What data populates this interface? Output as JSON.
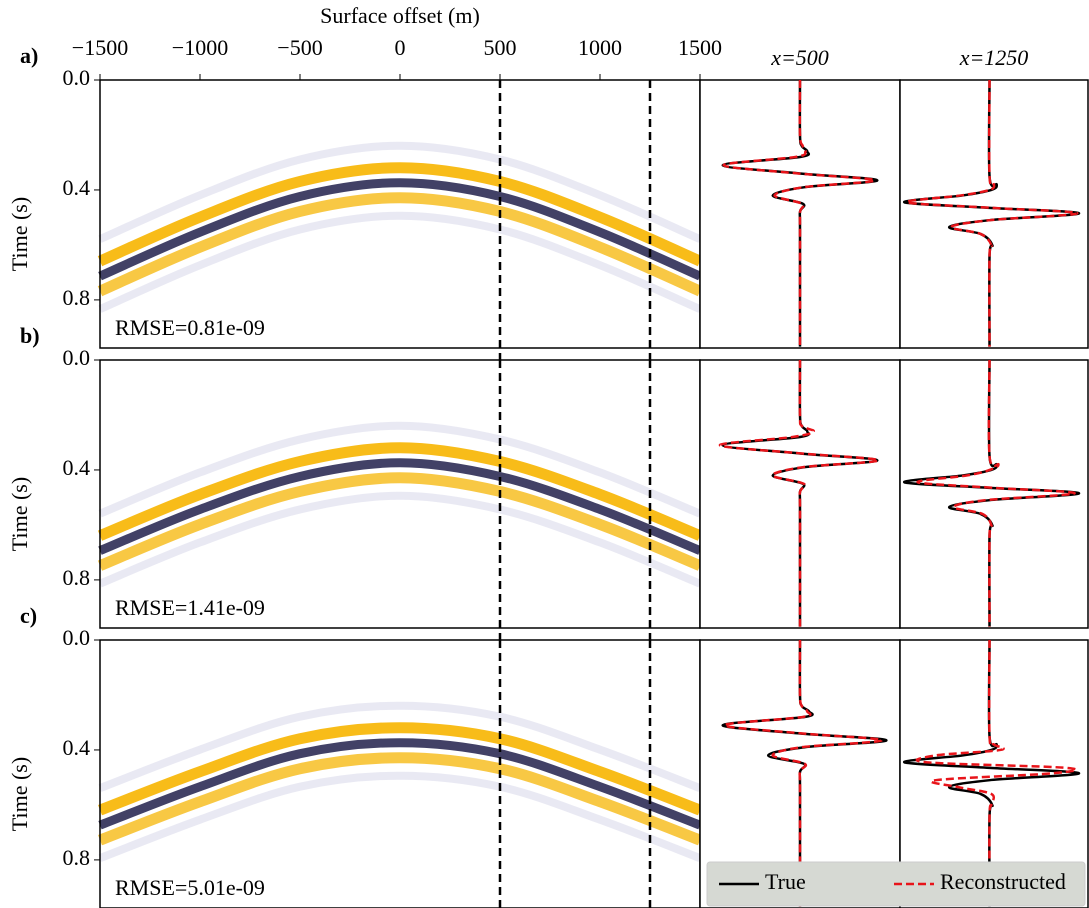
{
  "chart_data": [
    {
      "type": "heatmap",
      "panel_label": "a)",
      "xlabel": "Surface offset (m)",
      "ylabel": "Time (s)",
      "xlim": [
        -1500,
        1500
      ],
      "xticks": [
        {
          "value": -1500,
          "label": "−1500"
        },
        {
          "value": -1000,
          "label": "−1000"
        },
        {
          "value": -500,
          "label": "−500"
        },
        0,
        500,
        1000,
        1500
      ],
      "ylim": [
        0,
        0.975
      ],
      "yticks": [
        {
          "value": 0,
          "label": "0.0"
        },
        0.4,
        0.8
      ],
      "annotation": "RMSE=0.81e-09",
      "vlines": [
        500,
        1250
      ],
      "wavefront": {
        "x": [
          -1500,
          -1000,
          -500,
          0,
          500,
          1000,
          1500
        ],
        "values": [
          0.71,
          0.55,
          0.42,
          0.37,
          0.42,
          0.55,
          0.71
        ]
      }
    },
    {
      "type": "trace",
      "title": "x=500",
      "xlim": [
        0,
        0.975
      ],
      "ylim": [
        -1.1,
        1.1
      ],
      "x": [
        0,
        0.2,
        0.24,
        0.26,
        0.28,
        0.31,
        0.34,
        0.365,
        0.39,
        0.42,
        0.45,
        0.48,
        0.55,
        0.97
      ],
      "series": [
        {
          "name": "True",
          "color": "#000000",
          "values": [
            0,
            0,
            0.02,
            0.08,
            0,
            -0.85,
            0,
            0.85,
            0.05,
            -0.3,
            0.03,
            0,
            0,
            0
          ]
        },
        {
          "name": "Reconstructed",
          "color": "#e8141a",
          "values": [
            0,
            0,
            0.03,
            0.06,
            -0.05,
            -0.84,
            -0.02,
            0.82,
            0.04,
            -0.28,
            0.02,
            0,
            0,
            0
          ]
        }
      ]
    },
    {
      "type": "trace",
      "title": "x=1250",
      "xlim": [
        0,
        0.975
      ],
      "ylim": [
        -1.0,
        1.1
      ],
      "x": [
        0,
        0.35,
        0.38,
        0.4,
        0.42,
        0.445,
        0.465,
        0.485,
        0.51,
        0.535,
        0.56,
        0.6,
        0.64,
        0.97
      ],
      "series": [
        {
          "name": "True",
          "color": "#000000",
          "values": [
            0,
            0,
            0.08,
            0.02,
            -0.3,
            -0.95,
            0,
            1.0,
            0,
            -0.45,
            -0.1,
            0.03,
            0,
            0
          ]
        },
        {
          "name": "Reconstructed",
          "color": "#e8141a",
          "values": [
            0,
            0,
            0.05,
            0,
            -0.32,
            -0.92,
            0.02,
            0.98,
            0,
            -0.43,
            -0.1,
            0.02,
            0,
            0
          ]
        }
      ]
    },
    {
      "type": "heatmap",
      "panel_label": "b)",
      "ylabel": "Time (s)",
      "xlim": [
        -1500,
        1500
      ],
      "ylim": [
        0,
        0.975
      ],
      "yticks": [
        {
          "value": 0,
          "label": "0.0"
        },
        0.4,
        0.8
      ],
      "annotation": "RMSE=1.41e-09",
      "vlines": [
        500,
        1250
      ],
      "wavefront": {
        "x": [
          -1500,
          -1000,
          -500,
          0,
          500,
          1000,
          1500
        ],
        "values": [
          0.69,
          0.54,
          0.42,
          0.37,
          0.42,
          0.54,
          0.69
        ]
      }
    },
    {
      "type": "trace",
      "xlim": [
        0,
        0.975
      ],
      "ylim": [
        -1.1,
        1.1
      ],
      "x": [
        0,
        0.2,
        0.24,
        0.26,
        0.28,
        0.31,
        0.34,
        0.365,
        0.39,
        0.42,
        0.45,
        0.48,
        0.55,
        0.97
      ],
      "series": [
        {
          "name": "True",
          "color": "#000000",
          "values": [
            0,
            0,
            0.02,
            0.08,
            0,
            -0.85,
            0,
            0.85,
            0.05,
            -0.3,
            0.03,
            0,
            0,
            0
          ]
        },
        {
          "name": "Reconstructed",
          "color": "#e8141a",
          "values": [
            0,
            0,
            0.02,
            0.15,
            -0.08,
            -0.88,
            0.02,
            0.86,
            0.03,
            -0.3,
            0.04,
            0,
            0,
            0
          ]
        }
      ]
    },
    {
      "type": "trace",
      "xlim": [
        0,
        0.975
      ],
      "ylim": [
        -1.0,
        1.1
      ],
      "x": [
        0,
        0.35,
        0.38,
        0.4,
        0.42,
        0.445,
        0.465,
        0.485,
        0.51,
        0.535,
        0.56,
        0.6,
        0.64,
        0.97
      ],
      "series": [
        {
          "name": "True",
          "color": "#000000",
          "values": [
            0,
            0,
            0.08,
            0.02,
            -0.3,
            -0.95,
            0,
            1.0,
            0,
            -0.45,
            -0.1,
            0.03,
            0,
            0
          ]
        },
        {
          "name": "Reconstructed",
          "color": "#e8141a",
          "values": [
            0,
            0,
            0.1,
            0,
            -0.25,
            -0.8,
            0.05,
            0.95,
            -0.05,
            -0.4,
            -0.08,
            0.02,
            0,
            0
          ]
        }
      ]
    },
    {
      "type": "heatmap",
      "panel_label": "c)",
      "ylabel": "Time (s)",
      "xlim": [
        -1500,
        1500
      ],
      "ylim": [
        0,
        0.975
      ],
      "yticks": [
        {
          "value": 0,
          "label": "0.0"
        },
        0.4,
        0.8
      ],
      "annotation": "RMSE=5.01e-09",
      "vlines": [
        500,
        1250
      ],
      "wavefront": {
        "x": [
          -1500,
          -1000,
          -500,
          0,
          500,
          1000,
          1500
        ],
        "values": [
          0.67,
          0.53,
          0.41,
          0.37,
          0.41,
          0.53,
          0.67
        ]
      }
    },
    {
      "type": "trace",
      "xlim": [
        0,
        0.975
      ],
      "ylim": [
        -1.1,
        1.1
      ],
      "x": [
        0,
        0.2,
        0.24,
        0.26,
        0.28,
        0.31,
        0.34,
        0.365,
        0.39,
        0.42,
        0.45,
        0.48,
        0.55,
        0.97
      ],
      "series": [
        {
          "name": "True",
          "color": "#000000",
          "values": [
            0,
            0,
            0.02,
            0.1,
            0.05,
            -0.85,
            0,
            0.95,
            0.05,
            -0.35,
            0.04,
            0,
            0,
            0
          ]
        },
        {
          "name": "Reconstructed",
          "color": "#e8141a",
          "values": [
            0,
            0,
            0.02,
            0.08,
            0.03,
            -0.83,
            0.03,
            0.9,
            0.02,
            -0.3,
            0.05,
            0,
            0,
            0
          ]
        }
      ]
    },
    {
      "type": "trace",
      "xlim": [
        0,
        0.975
      ],
      "ylim": [
        -1.0,
        1.1
      ],
      "legend": "lower right",
      "x": [
        0,
        0.35,
        0.38,
        0.4,
        0.42,
        0.445,
        0.465,
        0.485,
        0.51,
        0.535,
        0.56,
        0.6,
        0.64,
        0.97
      ],
      "series": [
        {
          "name": "True",
          "color": "#000000",
          "values": [
            0,
            0,
            0.08,
            0.02,
            -0.3,
            -0.95,
            0,
            1.0,
            0,
            -0.45,
            -0.1,
            0.03,
            0,
            0
          ]
        },
        {
          "name": "Reconstructed",
          "color": "#e8141a",
          "values": [
            0,
            0,
            0.05,
            0.12,
            -0.6,
            -0.7,
            0.85,
            0.7,
            -0.6,
            -0.35,
            0.02,
            0.02,
            0,
            0
          ]
        }
      ]
    }
  ]
}
